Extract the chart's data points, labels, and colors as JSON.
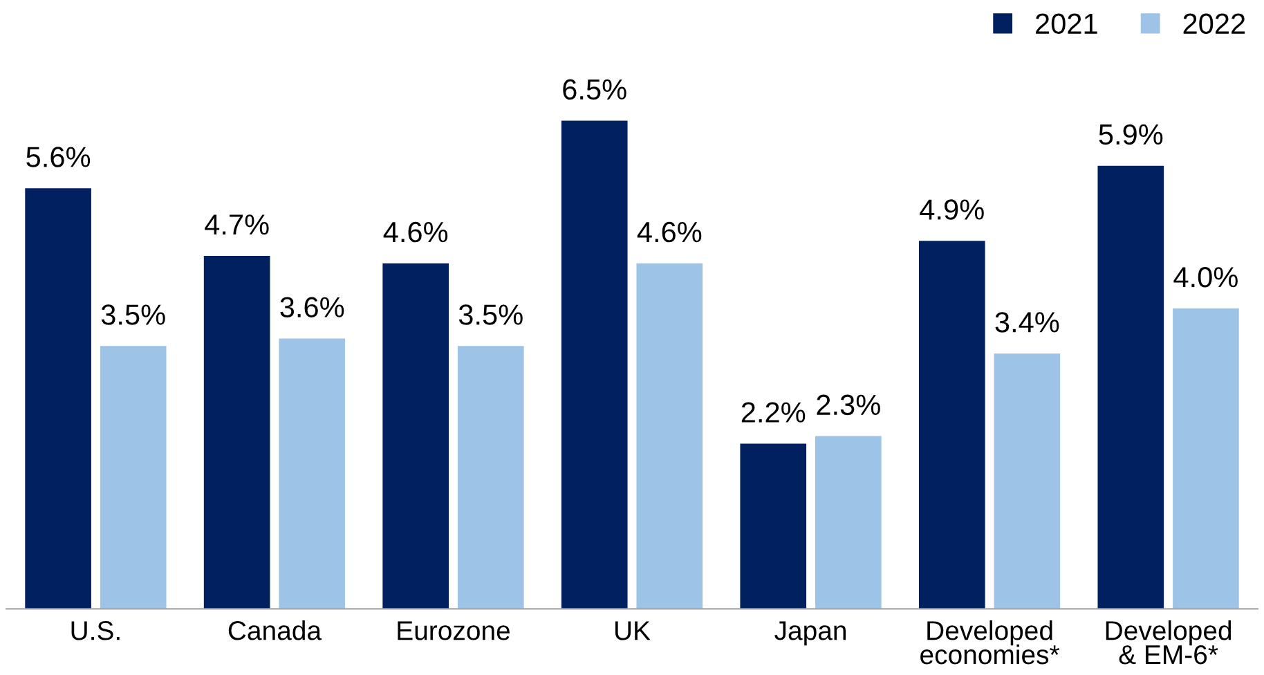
{
  "chart_data": {
    "type": "bar",
    "categories": [
      "U.S.",
      "Canada",
      "Eurozone",
      "UK",
      "Japan",
      "Developed\neconomies*",
      "Developed\n& EM-6*"
    ],
    "series": [
      {
        "name": "2021",
        "color": "#002060",
        "values": [
          5.6,
          4.7,
          4.6,
          6.5,
          2.2,
          4.9,
          5.9
        ],
        "value_labels": [
          "5.6%",
          "4.7%",
          "4.6%",
          "6.5%",
          "2.2%",
          "4.9%",
          "5.9%"
        ]
      },
      {
        "name": "2022",
        "color": "#9dc3e6",
        "values": [
          3.5,
          3.6,
          3.5,
          4.6,
          2.3,
          3.4,
          4.0
        ],
        "value_labels": [
          "3.5%",
          "3.6%",
          "3.5%",
          "4.6%",
          "2.3%",
          "3.4%",
          "4.0%"
        ]
      }
    ],
    "legend": "top right",
    "grid": false
  }
}
